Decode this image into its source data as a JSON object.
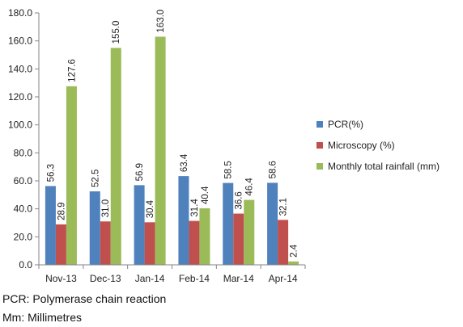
{
  "chart_data": {
    "type": "bar",
    "categories": [
      "Nov-13",
      "Dec-13",
      "Jan-14",
      "Feb-14",
      "Mar-14",
      "Apr-14"
    ],
    "series": [
      {
        "name": "PCR(%)",
        "color": "#4f81bd",
        "values": [
          56.3,
          52.5,
          56.9,
          63.4,
          58.5,
          58.6
        ]
      },
      {
        "name": "Microscopy (%)",
        "color": "#c0504d",
        "values": [
          28.9,
          31.0,
          30.4,
          31.4,
          36.6,
          32.1
        ]
      },
      {
        "name": "Monthly total rainfall (mm)",
        "color": "#9bbb59",
        "values": [
          127.6,
          155.0,
          163.0,
          40.4,
          46.4,
          2.4
        ]
      }
    ],
    "ylim": [
      0,
      180
    ],
    "yticks": [
      "0.0",
      "20.0",
      "40.0",
      "60.0",
      "80.0",
      "100.0",
      "120.0",
      "140.0",
      "160.0",
      "180.0"
    ],
    "legend": "right",
    "grid": false,
    "data_labels": "vertical"
  },
  "notes": [
    "PCR: Polymerase chain reaction",
    "Mm: Millimetres"
  ]
}
